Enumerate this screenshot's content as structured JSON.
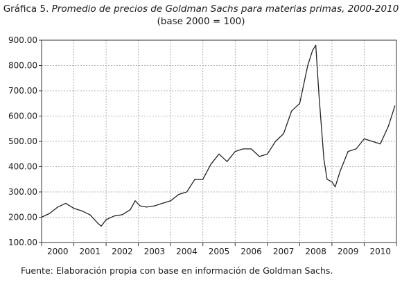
{
  "header": {
    "prefix": "Gráfica 5.",
    "title": "Promedio de precios de Goldman Sachs para materias primas, 2000-2010",
    "subtitle": "(base 2000 = 100)"
  },
  "footer": {
    "source": "Fuente: Elaboración propia con base en información de Goldman Sachs."
  },
  "chart_data": {
    "type": "line",
    "title": "Promedio de precios de Goldman Sachs para materias primas, 2000-2010",
    "subtitle": "(base 2000 = 100)",
    "xlabel": "",
    "ylabel": "",
    "ylim": [
      100,
      900
    ],
    "xlim": [
      2000.0,
      2011.0
    ],
    "y_ticks": [
      100,
      200,
      300,
      400,
      500,
      600,
      700,
      800,
      900
    ],
    "y_tick_labels": [
      "100.00",
      "200.00",
      "300.00",
      "400.00",
      "500.00",
      "600.00",
      "700.00",
      "800.00",
      "900.00"
    ],
    "x_tick_labels": [
      "2000",
      "2001",
      "2002",
      "2003",
      "2004",
      "2005",
      "2006",
      "2007",
      "2008",
      "2009",
      "2010"
    ],
    "grid": true,
    "series": [
      {
        "x": [
          2000.0,
          2000.25,
          2000.5,
          2000.75,
          2001.0,
          2001.25,
          2001.5,
          2001.75,
          2001.85,
          2002.0,
          2002.25,
          2002.5,
          2002.75,
          2002.9,
          2003.05,
          2003.25,
          2003.5,
          2003.75,
          2004.0,
          2004.25,
          2004.5,
          2004.75,
          2005.0,
          2005.25,
          2005.5,
          2005.75,
          2006.0,
          2006.25,
          2006.5,
          2006.75,
          2007.0,
          2007.25,
          2007.5,
          2007.75,
          2008.0,
          2008.25,
          2008.4,
          2008.5,
          2008.6,
          2008.75,
          2008.85,
          2009.0,
          2009.1,
          2009.25,
          2009.5,
          2009.75,
          2010.0,
          2010.25,
          2010.5,
          2010.75,
          2010.95
        ],
        "values": [
          200,
          215,
          240,
          255,
          235,
          225,
          210,
          175,
          165,
          190,
          205,
          210,
          230,
          265,
          245,
          240,
          245,
          255,
          265,
          290,
          300,
          350,
          350,
          410,
          450,
          420,
          460,
          470,
          470,
          440,
          450,
          500,
          530,
          620,
          650,
          800,
          860,
          880,
          680,
          430,
          350,
          340,
          320,
          380,
          460,
          470,
          510,
          500,
          490,
          560,
          640
        ]
      }
    ]
  }
}
